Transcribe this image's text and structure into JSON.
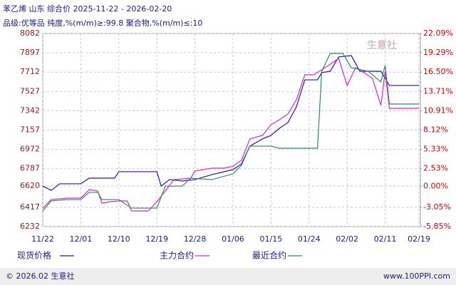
{
  "chart_data": {
    "type": "line",
    "title": "苯乙烯  山东  综合价  2025-11-22 - 2026-02-20",
    "subtitle": "品级:优等品  纯度,%(m/m)≥:99.8  聚合物,%(m/m)≤:10",
    "xticks": [
      "11/22",
      "12/01",
      "12/10",
      "12/19",
      "12/28",
      "01/06",
      "01/15",
      "01/24",
      "02/02",
      "02/11",
      "02/19"
    ],
    "ylim": [
      6232,
      8082
    ],
    "yticks": [
      8082,
      7897,
      7712,
      7527,
      7342,
      7157,
      6972,
      6787,
      6620,
      6417,
      6232
    ],
    "y2lim": [
      -5.85,
      22.09
    ],
    "y2ticks": [
      {
        "value": 22.09,
        "label": "22.09%"
      },
      {
        "value": 19.29,
        "label": "19.29%"
      },
      {
        "value": 16.5,
        "label": "16.50%"
      },
      {
        "value": 13.71,
        "label": "13.71%"
      },
      {
        "value": 10.91,
        "label": "10.91%"
      },
      {
        "value": 8.12,
        "label": "8.12%"
      },
      {
        "value": 5.33,
        "label": "5.33%"
      },
      {
        "value": 2.53,
        "label": "2.53%"
      },
      {
        "value": 0,
        "label": "0.00%"
      },
      {
        "value": -3.05,
        "label": "-3.05%"
      },
      {
        "value": -5.85,
        "label": "-5.85%"
      }
    ],
    "grid": true,
    "series": [
      {
        "name": "现货价格",
        "color": "#1a1aa6",
        "x": [
          "11/22",
          "11/24",
          "11/26",
          "12/01",
          "12/03",
          "12/09",
          "12/10",
          "12/19",
          "12/20",
          "12/22",
          "12/25",
          "12/28",
          "01/01",
          "01/06",
          "01/08",
          "01/10",
          "01/13",
          "01/15",
          "01/17",
          "01/19",
          "01/21",
          "01/23",
          "01/26",
          "01/27",
          "01/29",
          "01/31",
          "02/03",
          "02/05",
          "02/10",
          "02/12",
          "02/19"
        ],
        "values": [
          6620,
          6579,
          6642,
          6642,
          6696,
          6696,
          6758,
          6758,
          6620,
          6682,
          6669,
          6682,
          6730,
          6778,
          6832,
          7003,
          7072,
          7106,
          7174,
          7229,
          7379,
          7638,
          7638,
          7707,
          7720,
          7857,
          7870,
          7720,
          7720,
          7584,
          7584
        ]
      },
      {
        "name": "主力合约",
        "color": "#e020d0",
        "x": [
          "11/22",
          "11/24",
          "11/28",
          "12/01",
          "12/03",
          "12/05",
          "12/06",
          "12/08",
          "12/10",
          "12/12",
          "12/13",
          "12/17",
          "12/19",
          "12/21",
          "12/23",
          "12/27",
          "12/28",
          "01/01",
          "01/04",
          "01/06",
          "01/08",
          "01/10",
          "01/13",
          "01/15",
          "01/17",
          "01/19",
          "01/21",
          "01/23",
          "01/25",
          "01/27",
          "01/29",
          "01/31",
          "02/02",
          "02/04",
          "02/06",
          "02/08",
          "02/10",
          "02/11",
          "02/12",
          "02/14",
          "02/19"
        ],
        "values": [
          6409,
          6491,
          6505,
          6505,
          6587,
          6573,
          6457,
          6471,
          6478,
          6478,
          6382,
          6382,
          6471,
          6573,
          6682,
          6696,
          6764,
          6792,
          6792,
          6812,
          6867,
          7072,
          7106,
          7208,
          7256,
          7311,
          7447,
          7686,
          7686,
          7734,
          7788,
          7843,
          7584,
          7754,
          7707,
          7652,
          7393,
          7720,
          7365,
          7365,
          7365
        ]
      },
      {
        "name": "最近合约",
        "color": "#2e8b57",
        "x": [
          "11/22",
          "11/24",
          "11/28",
          "12/01",
          "12/03",
          "12/05",
          "12/06",
          "12/10",
          "12/13",
          "12/19",
          "12/21",
          "12/25",
          "12/27",
          "01/01",
          "01/06",
          "01/08",
          "01/10",
          "01/15",
          "01/17",
          "01/26",
          "01/27",
          "01/29",
          "02/01",
          "02/03",
          "02/07",
          "02/10",
          "02/11",
          "02/12",
          "02/14",
          "02/19"
        ],
        "values": [
          6382,
          6478,
          6491,
          6491,
          6560,
          6560,
          6491,
          6491,
          6409,
          6409,
          6620,
          6620,
          6696,
          6682,
          6737,
          6819,
          7003,
          7003,
          6983,
          6983,
          7720,
          7891,
          7891,
          7754,
          7720,
          7618,
          7775,
          7406,
          7406,
          7406
        ]
      }
    ],
    "watermark": "生意社",
    "footer_left": "© 2026.02 生意社",
    "footer_right": "www.100PPI.com"
  }
}
